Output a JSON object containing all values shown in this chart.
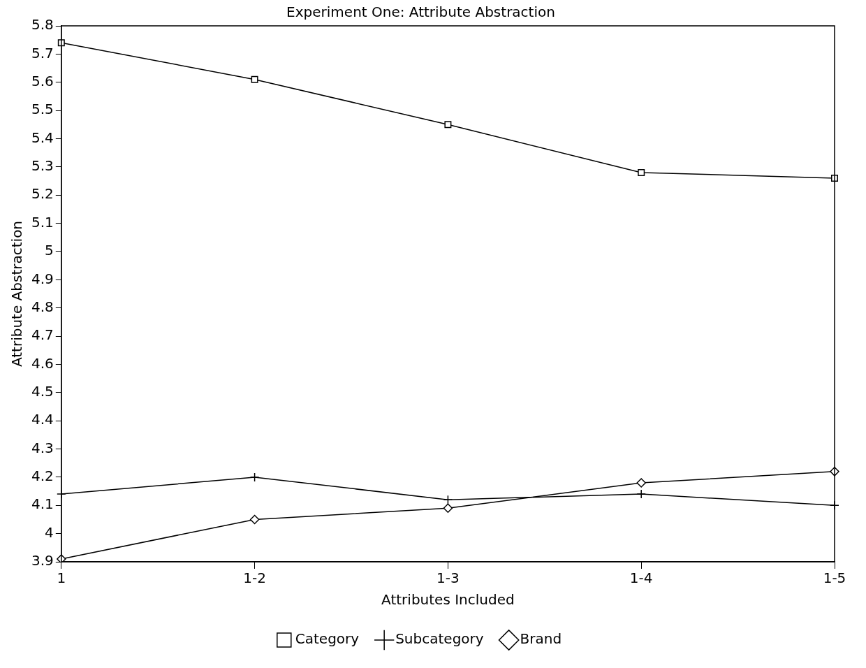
{
  "chart_data": {
    "type": "line",
    "title": "Experiment One: Attribute Abstraction",
    "xlabel": "Attributes Included",
    "ylabel": "Attribute Abstraction",
    "categories": [
      "1",
      "1-2",
      "1-3",
      "1-4",
      "1-5"
    ],
    "series": [
      {
        "name": "Category",
        "color": "#000000",
        "marker": "square",
        "values": [
          5.74,
          5.61,
          5.45,
          5.28,
          5.26
        ]
      },
      {
        "name": "Subcategory",
        "color": "#000000",
        "marker": "cross",
        "values": [
          4.14,
          4.2,
          4.12,
          4.14,
          4.1
        ]
      },
      {
        "name": "Brand",
        "color": "#000000",
        "marker": "diamond",
        "values": [
          3.91,
          4.05,
          4.09,
          4.18,
          4.22
        ]
      }
    ],
    "ylim": [
      3.9,
      5.8
    ],
    "yticks": [
      3.9,
      4,
      4.1,
      4.2,
      4.3,
      4.4,
      4.5,
      4.6,
      4.7,
      4.8,
      4.9,
      5,
      5.1,
      5.2,
      5.3,
      5.4,
      5.5,
      5.6,
      5.7,
      5.8
    ],
    "grid": false,
    "legend": "bottom",
    "line_style": "solid"
  }
}
